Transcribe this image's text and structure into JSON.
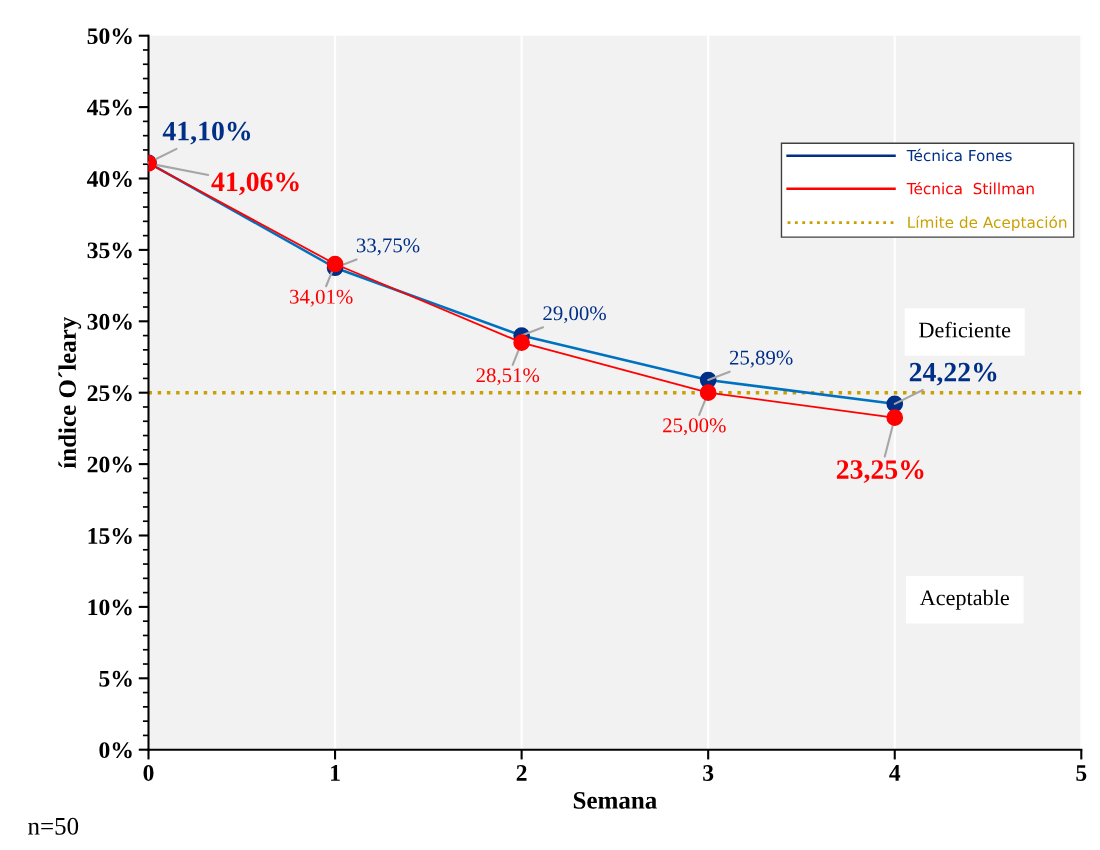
{
  "chart_data": {
    "type": "line",
    "xlabel": "Semana",
    "ylabel": "índice O´leary",
    "x": [
      0,
      1,
      2,
      3,
      4
    ],
    "xlim": [
      0,
      5
    ],
    "xticks": [
      0,
      1,
      2,
      3,
      4,
      5
    ],
    "ylim": [
      0,
      50
    ],
    "yticks": [
      {
        "value": 0,
        "label": "0%"
      },
      {
        "value": 5,
        "label": "5%"
      },
      {
        "value": 10,
        "label": "10%"
      },
      {
        "value": 15,
        "label": "15%"
      },
      {
        "value": 20,
        "label": "20%"
      },
      {
        "value": 25,
        "label": "25%"
      },
      {
        "value": 30,
        "label": "30%"
      },
      {
        "value": 35,
        "label": "35%"
      },
      {
        "value": 40,
        "label": "40%"
      },
      {
        "value": 45,
        "label": "45%"
      },
      {
        "value": 50,
        "label": "50%"
      }
    ],
    "series": [
      {
        "name": "Técnica Fones",
        "color": "#0070c0",
        "values": [
          41.1,
          33.75,
          29.0,
          25.89,
          24.22
        ],
        "value_labels": [
          "41,10%",
          "33,75%",
          "29,00%",
          "25,89%",
          "24,22%"
        ]
      },
      {
        "name": "Técnica  Stillman",
        "color": "#ff0000",
        "values": [
          41.06,
          34.01,
          28.51,
          25.0,
          23.25
        ],
        "value_labels": [
          "41,06%",
          "34,01%",
          "28,51%",
          "25,00%",
          "23,25%"
        ]
      }
    ],
    "ref_lines": [
      {
        "axis": "y",
        "value": 25,
        "label": "Límite de Aceptación",
        "color": "#c9a000",
        "line_style": "dotted"
      }
    ],
    "annotations": [
      "Deficiente",
      "Aceptable",
      "n=50"
    ],
    "marker": "circle",
    "line_style": "solid",
    "grid": "x",
    "legend": "top right"
  }
}
